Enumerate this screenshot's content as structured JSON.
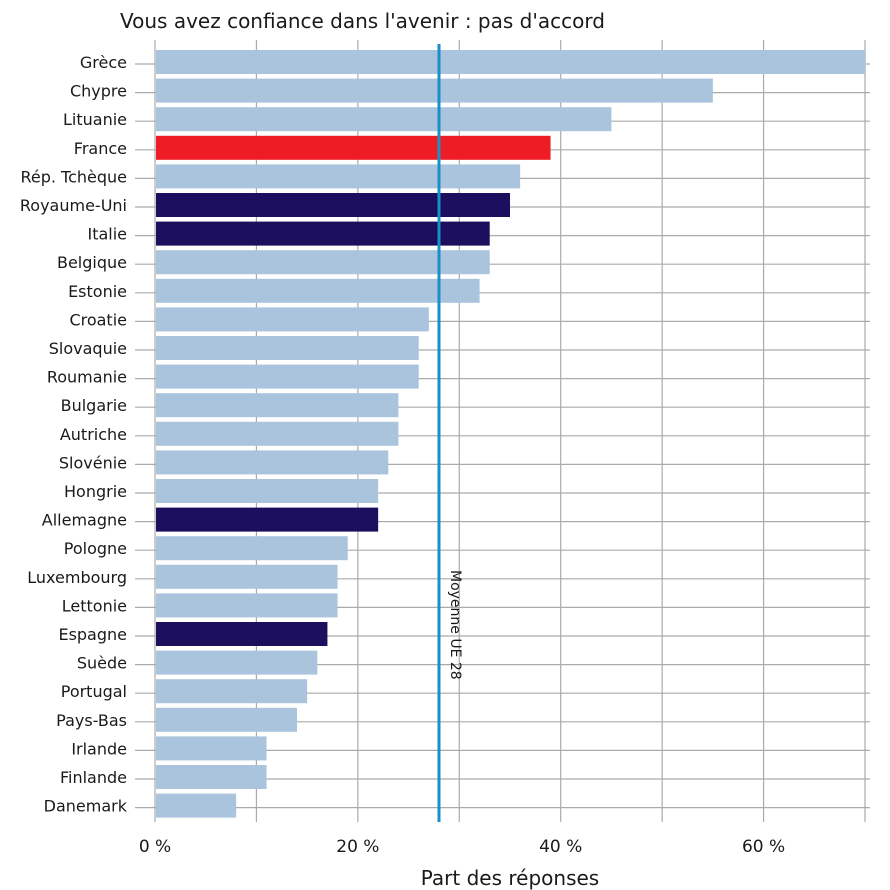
{
  "chart_data": {
    "type": "bar",
    "orientation": "horizontal",
    "title": "Vous avez confiance dans l'avenir : pas d'accord",
    "xlabel": "Part des réponses",
    "ylabel": "",
    "xlim": [
      0,
      70
    ],
    "xticks": [
      0,
      20,
      40,
      60
    ],
    "xtick_labels": [
      "0 %",
      "20 %",
      "40 %",
      "60 %"
    ],
    "grid": true,
    "categories": [
      "Grèce",
      "Chypre",
      "Lituanie",
      "France",
      "Rép. Tchèque",
      "Royaume-Uni",
      "Italie",
      "Belgique",
      "Estonie",
      "Croatie",
      "Slovaquie",
      "Roumanie",
      "Bulgarie",
      "Autriche",
      "Slovénie",
      "Hongrie",
      "Allemagne",
      "Pologne",
      "Luxembourg",
      "Lettonie",
      "Espagne",
      "Suède",
      "Portugal",
      "Pays-Bas",
      "Irlande",
      "Finlande",
      "Danemark"
    ],
    "values": [
      70,
      55,
      45,
      39,
      36,
      35,
      33,
      33,
      32,
      27,
      26,
      26,
      24,
      24,
      23,
      22,
      22,
      19,
      18,
      18,
      17,
      16,
      15,
      14,
      11,
      11,
      8
    ],
    "bar_colors": [
      "#a9c4dc",
      "#a9c4dc",
      "#a9c4dc",
      "#ee1c25",
      "#a9c4dc",
      "#1b0f5e",
      "#1b0f5e",
      "#a9c4dc",
      "#a9c4dc",
      "#a9c4dc",
      "#a9c4dc",
      "#a9c4dc",
      "#a9c4dc",
      "#a9c4dc",
      "#a9c4dc",
      "#a9c4dc",
      "#1b0f5e",
      "#a9c4dc",
      "#a9c4dc",
      "#a9c4dc",
      "#1b0f5e",
      "#a9c4dc",
      "#a9c4dc",
      "#a9c4dc",
      "#a9c4dc",
      "#a9c4dc",
      "#a9c4dc"
    ],
    "reference_line": {
      "value": 28,
      "label": "Moyenne UE 28",
      "color": "#1a8fca"
    },
    "colors": {
      "default": "#a9c4dc",
      "highlight": "#ee1c25",
      "dark": "#1b0f5e",
      "grid": "#aaaaaa"
    }
  }
}
